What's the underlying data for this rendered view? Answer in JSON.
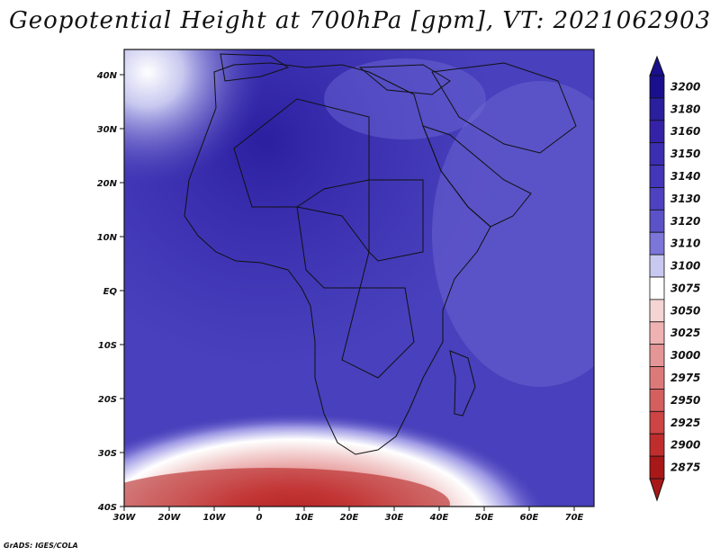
{
  "title": "Geopotential Height at 700hPa [gpm], VT: 2021062903",
  "credit": "GrADS: IGES/COLA",
  "map": {
    "region": "Africa",
    "lon_range": [
      -30,
      75
    ],
    "lat_range": [
      -40,
      45
    ],
    "lon_ticks": [
      "30W",
      "20W",
      "10W",
      "0",
      "10E",
      "20E",
      "30E",
      "40E",
      "50E",
      "60E",
      "70E"
    ],
    "lat_ticks": [
      "40S",
      "30S",
      "20S",
      "10S",
      "EQ",
      "10N",
      "20N",
      "30N",
      "40N"
    ]
  },
  "colorbar": {
    "levels": [
      "3200",
      "3180",
      "3160",
      "3150",
      "3140",
      "3130",
      "3120",
      "3110",
      "3100",
      "3075",
      "3050",
      "3025",
      "3000",
      "2975",
      "2950",
      "2925",
      "2900",
      "2875"
    ],
    "colors": [
      "#1a0f8c",
      "#2a1f9c",
      "#3522a6",
      "#3c2eb0",
      "#4436b8",
      "#4e42c0",
      "#5b52c8",
      "#7b76d8",
      "#c8c8f0",
      "#ffffff",
      "#f5d4d4",
      "#eeb2b2",
      "#e49696",
      "#dc7a7a",
      "#d45f5f",
      "#cc4444",
      "#c02d2d",
      "#a81818"
    ]
  }
}
